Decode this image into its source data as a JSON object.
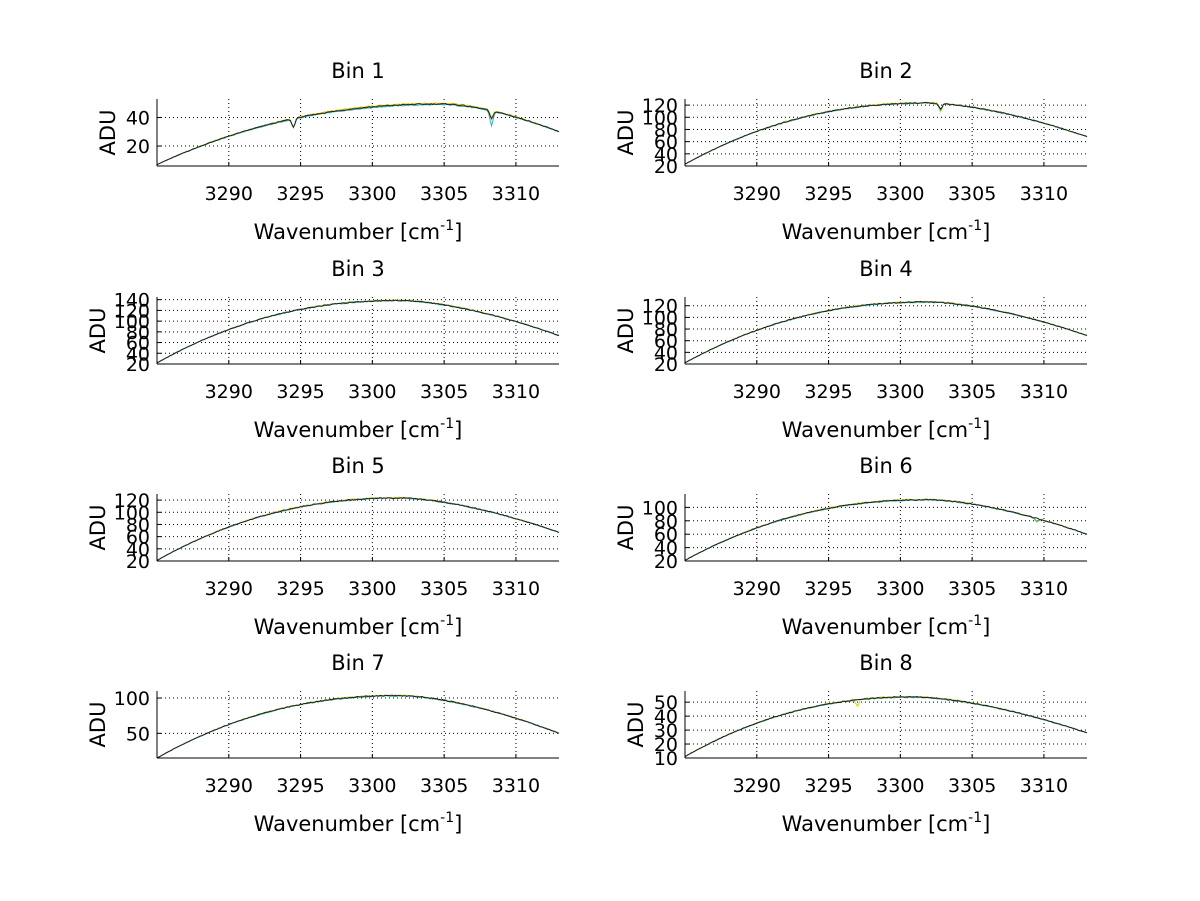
{
  "chart_data": [
    {
      "type": "line",
      "title": "Bin 1",
      "xlabel": "Wavenumber [cm",
      "xlabel_sup": "-1",
      "xlabel_suffix": "]",
      "ylabel": "ADU",
      "xlim": [
        3285,
        3313
      ],
      "ylim": [
        6,
        53
      ],
      "xticks": [
        3290,
        3295,
        3300,
        3305,
        3310
      ],
      "xtick_labels": [
        "3290",
        "3295",
        "3300",
        "3305",
        "3310"
      ],
      "yticks": [
        20,
        40
      ],
      "ytick_labels": [
        "20",
        "40"
      ],
      "grid": true,
      "series": [
        {
          "name": "yellow",
          "color": "#e6c800",
          "peak_x": 3305,
          "peak_y": 50,
          "left_y": 7,
          "right_y": 30,
          "dips": [
            [
              3294.5,
              -7
            ],
            [
              3308.3,
              -5
            ]
          ]
        },
        {
          "name": "cyan",
          "color": "#2bb6b6",
          "peak_x": 3305,
          "peak_y": 49,
          "left_y": 7,
          "right_y": 30,
          "dips": [
            [
              3294.5,
              -6
            ],
            [
              3308.3,
              -10
            ]
          ]
        },
        {
          "name": "black",
          "color": "#202020",
          "peak_x": 3305,
          "peak_y": 49.5,
          "left_y": 7,
          "right_y": 30,
          "dips": [
            [
              3294.5,
              -6
            ],
            [
              3308.3,
              -6
            ]
          ]
        }
      ]
    },
    {
      "type": "line",
      "title": "Bin 2",
      "xlabel": "Wavenumber [cm",
      "xlabel_sup": "-1",
      "xlabel_suffix": "]",
      "ylabel": "ADU",
      "xlim": [
        3285,
        3313
      ],
      "ylim": [
        20,
        130
      ],
      "xticks": [
        3290,
        3295,
        3300,
        3305,
        3310
      ],
      "xtick_labels": [
        "3290",
        "3295",
        "3300",
        "3305",
        "3310"
      ],
      "yticks": [
        20,
        40,
        60,
        80,
        100,
        120
      ],
      "ytick_labels": [
        "20",
        "40",
        "60",
        "80",
        "100",
        "120"
      ],
      "grid": true,
      "series": [
        {
          "name": "yellow",
          "color": "#e6c800",
          "peak_x": 3302,
          "peak_y": 124,
          "left_y": 23,
          "right_y": 68,
          "dips": [
            [
              3302.8,
              -14
            ]
          ]
        },
        {
          "name": "cyan",
          "color": "#2bb6b6",
          "peak_x": 3302,
          "peak_y": 123,
          "left_y": 23,
          "right_y": 68,
          "dips": [
            [
              3302.8,
              -10
            ]
          ]
        },
        {
          "name": "black",
          "color": "#202020",
          "peak_x": 3302,
          "peak_y": 123.5,
          "left_y": 23,
          "right_y": 68,
          "dips": [
            [
              3302.8,
              -9
            ]
          ]
        }
      ]
    },
    {
      "type": "line",
      "title": "Bin 3",
      "xlabel": "Wavenumber [cm",
      "xlabel_sup": "-1",
      "xlabel_suffix": "]",
      "ylabel": "ADU",
      "xlim": [
        3285,
        3313
      ],
      "ylim": [
        20,
        145
      ],
      "xticks": [
        3290,
        3295,
        3300,
        3305,
        3310
      ],
      "xtick_labels": [
        "3290",
        "3295",
        "3300",
        "3305",
        "3310"
      ],
      "yticks": [
        20,
        40,
        60,
        80,
        100,
        120,
        140
      ],
      "ytick_labels": [
        "20",
        "40",
        "60",
        "80",
        "100",
        "120",
        "140"
      ],
      "grid": true,
      "series": [
        {
          "name": "yellow",
          "color": "#e6c800",
          "peak_x": 3302,
          "peak_y": 139,
          "left_y": 22,
          "right_y": 73,
          "dips": []
        },
        {
          "name": "cyan",
          "color": "#2bb6b6",
          "peak_x": 3302,
          "peak_y": 138,
          "left_y": 22,
          "right_y": 73,
          "dips": []
        },
        {
          "name": "black",
          "color": "#202020",
          "peak_x": 3302,
          "peak_y": 138.5,
          "left_y": 22,
          "right_y": 73,
          "dips": []
        }
      ]
    },
    {
      "type": "line",
      "title": "Bin 4",
      "xlabel": "Wavenumber [cm",
      "xlabel_sup": "-1",
      "xlabel_suffix": "]",
      "ylabel": "ADU",
      "xlim": [
        3285,
        3313
      ],
      "ylim": [
        20,
        135
      ],
      "xticks": [
        3290,
        3295,
        3300,
        3305,
        3310
      ],
      "xtick_labels": [
        "3290",
        "3295",
        "3300",
        "3305",
        "3310"
      ],
      "yticks": [
        20,
        40,
        60,
        80,
        100,
        120
      ],
      "ytick_labels": [
        "20",
        "40",
        "60",
        "80",
        "100",
        "120"
      ],
      "grid": true,
      "series": [
        {
          "name": "yellow",
          "color": "#e6c800",
          "peak_x": 3302,
          "peak_y": 127,
          "left_y": 22,
          "right_y": 69,
          "dips": []
        },
        {
          "name": "cyan",
          "color": "#2bb6b6",
          "peak_x": 3302,
          "peak_y": 126,
          "left_y": 22,
          "right_y": 69,
          "dips": []
        },
        {
          "name": "black",
          "color": "#202020",
          "peak_x": 3302,
          "peak_y": 126.5,
          "left_y": 22,
          "right_y": 69,
          "dips": []
        }
      ]
    },
    {
      "type": "line",
      "title": "Bin 5",
      "xlabel": "Wavenumber [cm",
      "xlabel_sup": "-1",
      "xlabel_suffix": "]",
      "ylabel": "ADU",
      "xlim": [
        3285,
        3313
      ],
      "ylim": [
        20,
        130
      ],
      "xticks": [
        3290,
        3295,
        3300,
        3305,
        3310
      ],
      "xtick_labels": [
        "3290",
        "3295",
        "3300",
        "3305",
        "3310"
      ],
      "yticks": [
        20,
        40,
        60,
        80,
        100,
        120
      ],
      "ytick_labels": [
        "20",
        "40",
        "60",
        "80",
        "100",
        "120"
      ],
      "grid": true,
      "series": [
        {
          "name": "yellow",
          "color": "#e6c800",
          "peak_x": 3302,
          "peak_y": 124,
          "left_y": 21,
          "right_y": 67,
          "dips": []
        },
        {
          "name": "cyan",
          "color": "#2bb6b6",
          "peak_x": 3302,
          "peak_y": 123,
          "left_y": 21,
          "right_y": 67,
          "dips": []
        },
        {
          "name": "black",
          "color": "#202020",
          "peak_x": 3302,
          "peak_y": 123.5,
          "left_y": 21,
          "right_y": 67,
          "dips": []
        }
      ]
    },
    {
      "type": "line",
      "title": "Bin 6",
      "xlabel": "Wavenumber [cm",
      "xlabel_sup": "-1",
      "xlabel_suffix": "]",
      "ylabel": "ADU",
      "xlim": [
        3285,
        3313
      ],
      "ylim": [
        20,
        120
      ],
      "xticks": [
        3290,
        3295,
        3300,
        3305,
        3310
      ],
      "xtick_labels": [
        "3290",
        "3295",
        "3300",
        "3305",
        "3310"
      ],
      "yticks": [
        20,
        40,
        60,
        80,
        100
      ],
      "ytick_labels": [
        "20",
        "40",
        "60",
        "80",
        "100"
      ],
      "grid": true,
      "series": [
        {
          "name": "yellow",
          "color": "#e6c800",
          "peak_x": 3302,
          "peak_y": 112,
          "left_y": 21,
          "right_y": 60,
          "dips": [
            [
              3309.5,
              -6
            ]
          ]
        },
        {
          "name": "cyan",
          "color": "#2bb6b6",
          "peak_x": 3302,
          "peak_y": 111,
          "left_y": 21,
          "right_y": 60,
          "dips": [
            [
              3309.5,
              -4
            ]
          ]
        },
        {
          "name": "black",
          "color": "#202020",
          "peak_x": 3302,
          "peak_y": 111.5,
          "left_y": 21,
          "right_y": 60,
          "dips": []
        }
      ]
    },
    {
      "type": "line",
      "title": "Bin 7",
      "xlabel": "Wavenumber [cm",
      "xlabel_sup": "-1",
      "xlabel_suffix": "]",
      "ylabel": "ADU",
      "xlim": [
        3285,
        3313
      ],
      "ylim": [
        15,
        110
      ],
      "xticks": [
        3290,
        3295,
        3300,
        3305,
        3310
      ],
      "xtick_labels": [
        "3290",
        "3295",
        "3300",
        "3305",
        "3310"
      ],
      "yticks": [
        50,
        100
      ],
      "ytick_labels": [
        "50",
        "100"
      ],
      "grid": true,
      "series": [
        {
          "name": "yellow",
          "color": "#e6c800",
          "peak_x": 3302,
          "peak_y": 104,
          "left_y": 15,
          "right_y": 50,
          "dips": []
        },
        {
          "name": "cyan",
          "color": "#2bb6b6",
          "peak_x": 3302,
          "peak_y": 103,
          "left_y": 15,
          "right_y": 50,
          "dips": []
        },
        {
          "name": "black",
          "color": "#202020",
          "peak_x": 3302,
          "peak_y": 103.5,
          "left_y": 15,
          "right_y": 50,
          "dips": []
        }
      ]
    },
    {
      "type": "line",
      "title": "Bin 8",
      "xlabel": "Wavenumber [cm",
      "xlabel_sup": "-1",
      "xlabel_suffix": "]",
      "ylabel": "ADU",
      "xlim": [
        3285,
        3313
      ],
      "ylim": [
        10,
        58
      ],
      "xticks": [
        3290,
        3295,
        3300,
        3305,
        3310
      ],
      "xtick_labels": [
        "3290",
        "3295",
        "3300",
        "3305",
        "3310"
      ],
      "yticks": [
        10,
        20,
        30,
        40,
        50
      ],
      "ytick_labels": [
        "10",
        "20",
        "30",
        "40",
        "50"
      ],
      "grid": true,
      "series": [
        {
          "name": "yellow",
          "color": "#e6c800",
          "peak_x": 3301,
          "peak_y": 54,
          "left_y": 11,
          "right_y": 28,
          "dips": [
            [
              3297,
              -5
            ]
          ]
        },
        {
          "name": "cyan",
          "color": "#2bb6b6",
          "peak_x": 3301,
          "peak_y": 53.5,
          "left_y": 11,
          "right_y": 28,
          "dips": []
        },
        {
          "name": "black",
          "color": "#202020",
          "peak_x": 3301,
          "peak_y": 53.7,
          "left_y": 11,
          "right_y": 28,
          "dips": []
        }
      ]
    }
  ]
}
